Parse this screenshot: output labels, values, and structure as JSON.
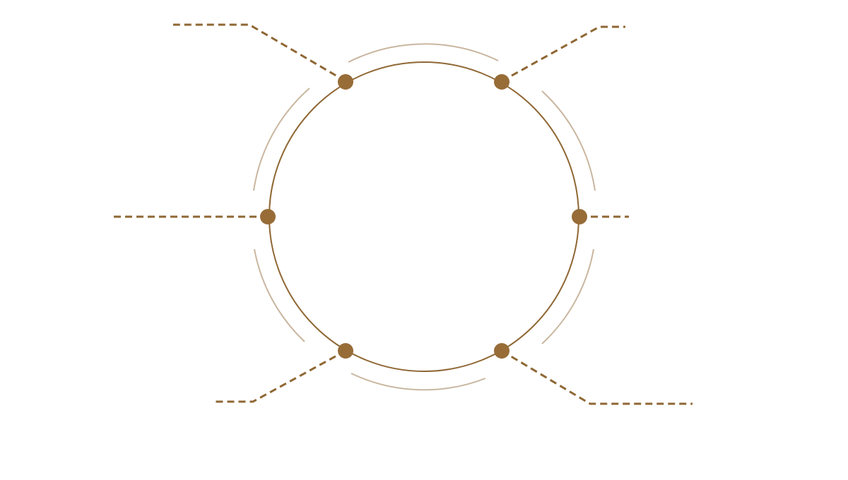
{
  "diagram": {
    "type": "radial-callout-diagram",
    "node_count": 6,
    "callout_count": 6,
    "outer_arc_count": 6
  },
  "colors": {
    "primary": "#8f6734",
    "node": "#976c37",
    "arc": "#c9b69f",
    "background": "#ffffff"
  }
}
